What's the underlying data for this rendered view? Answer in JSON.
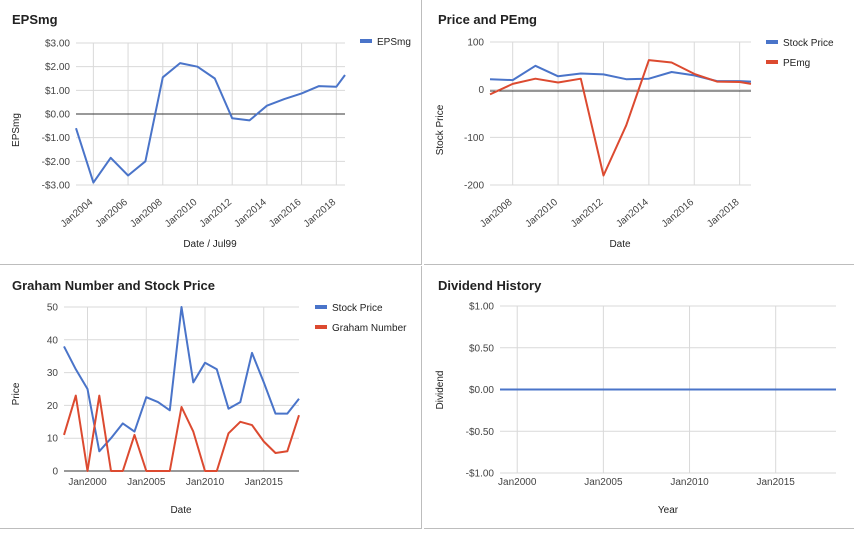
{
  "chart_data": [
    {
      "id": "eps",
      "type": "line",
      "title": "EPSmg",
      "xlabel": "Date / Jul99",
      "ylabel": "EPSmg",
      "x_ticks": [
        "Jan2004",
        "Jan2006",
        "Jan2008",
        "Jan2010",
        "Jan2012",
        "Jan2014",
        "Jan2016",
        "Jan2018"
      ],
      "y_ticks": [
        "$3.00",
        "$2.00",
        "$1.00",
        "$0.00",
        "-$1.00",
        "-$2.00",
        "-$3.00"
      ],
      "ylim": [
        -3,
        3
      ],
      "xlim": [
        2003.0,
        2018.5
      ],
      "legend_position": "top-right",
      "baseline": 0,
      "series": [
        {
          "name": "EPSmg",
          "color": "#4a74c9",
          "x": [
            2003.0,
            2004.0,
            2005.0,
            2006.0,
            2007.0,
            2008.0,
            2009.0,
            2010.0,
            2011.0,
            2012.0,
            2013.0,
            2014.0,
            2015.0,
            2016.0,
            2017.0,
            2018.0,
            2018.5
          ],
          "y": [
            -0.6,
            -2.9,
            -1.85,
            -2.6,
            -2.0,
            1.55,
            2.15,
            2.0,
            1.5,
            -0.18,
            -0.27,
            0.35,
            0.63,
            0.87,
            1.18,
            1.15,
            1.65
          ]
        }
      ]
    },
    {
      "id": "pe",
      "type": "line",
      "title": "Price and PEmg",
      "xlabel": "Date",
      "ylabel": "Stock Price",
      "x_ticks": [
        "Jan2008",
        "Jan2010",
        "Jan2012",
        "Jan2014",
        "Jan2016",
        "Jan2018"
      ],
      "y_ticks": [
        "100",
        "0",
        "-100",
        "-200"
      ],
      "ylim": [
        -200,
        100
      ],
      "xlim": [
        2007.0,
        2018.5
      ],
      "legend_position": "top-right",
      "baseline": 0,
      "series": [
        {
          "name": "Stock Price",
          "color": "#4a74c9",
          "x": [
            2007.0,
            2008.0,
            2009.0,
            2010.0,
            2011.0,
            2012.0,
            2013.0,
            2014.0,
            2015.0,
            2016.0,
            2017.0,
            2018.0,
            2018.5
          ],
          "y": [
            22,
            20,
            50,
            28,
            34,
            32,
            22,
            23,
            37,
            30,
            18,
            18,
            17
          ]
        },
        {
          "name": "PEmg",
          "color": "#dc4a30",
          "x": [
            2007.0,
            2008.0,
            2009.0,
            2010.0,
            2011.0,
            2012.0,
            2013.0,
            2014.0,
            2015.0,
            2016.0,
            2017.0,
            2018.0,
            2018.5
          ],
          "y": [
            -10,
            12,
            23,
            15,
            23,
            -180,
            -75,
            62,
            57,
            33,
            17,
            16,
            12
          ]
        }
      ]
    },
    {
      "id": "graham",
      "type": "line",
      "title": "Graham Number and Stock Price",
      "xlabel": "Date",
      "ylabel": "Price",
      "x_ticks": [
        "Jan2000",
        "Jan2005",
        "Jan2010",
        "Jan2015"
      ],
      "y_ticks": [
        "50",
        "40",
        "30",
        "20",
        "10",
        "0"
      ],
      "ylim": [
        0,
        50
      ],
      "xlim": [
        1998.0,
        2018.0
      ],
      "legend_position": "top-right",
      "series": [
        {
          "name": "Stock Price",
          "color": "#4a74c9",
          "x": [
            1998,
            1999,
            2000,
            2001,
            2002,
            2003,
            2004,
            2005,
            2006,
            2007,
            2008,
            2009,
            2010,
            2011,
            2012,
            2013,
            2014,
            2015,
            2016,
            2017,
            2018
          ],
          "y": [
            38,
            31,
            25,
            6,
            10,
            14.5,
            12,
            22.5,
            21,
            18.5,
            50,
            27,
            33,
            31,
            19,
            21,
            36,
            27,
            17.5,
            17.5,
            22
          ]
        },
        {
          "name": "Graham Number",
          "color": "#dc4a30",
          "x": [
            1998,
            1999,
            2000,
            2001,
            2002,
            2003,
            2004,
            2005,
            2006,
            2007,
            2008,
            2009,
            2010,
            2011,
            2012,
            2013,
            2014,
            2015,
            2016,
            2017,
            2018
          ],
          "y": [
            11,
            23,
            0,
            23,
            0,
            0,
            11,
            0,
            0,
            0,
            19.5,
            12,
            0,
            0,
            11.5,
            15,
            14,
            9,
            5.5,
            6,
            17
          ]
        }
      ]
    },
    {
      "id": "dividend",
      "type": "line",
      "title": "Dividend History",
      "xlabel": "Year",
      "ylabel": "Dividend",
      "x_ticks": [
        "Jan2000",
        "Jan2005",
        "Jan2010",
        "Jan2015"
      ],
      "y_ticks": [
        "$1.00",
        "$0.50",
        "$0.00",
        "-$0.50",
        "-$1.00"
      ],
      "ylim": [
        -1,
        1
      ],
      "xlim": [
        1999.0,
        2018.5
      ],
      "legend_position": "none",
      "series": [
        {
          "color": "#4a74c9",
          "x": [
            1999.0,
            2018.5
          ],
          "y": [
            0,
            0
          ]
        }
      ]
    }
  ]
}
